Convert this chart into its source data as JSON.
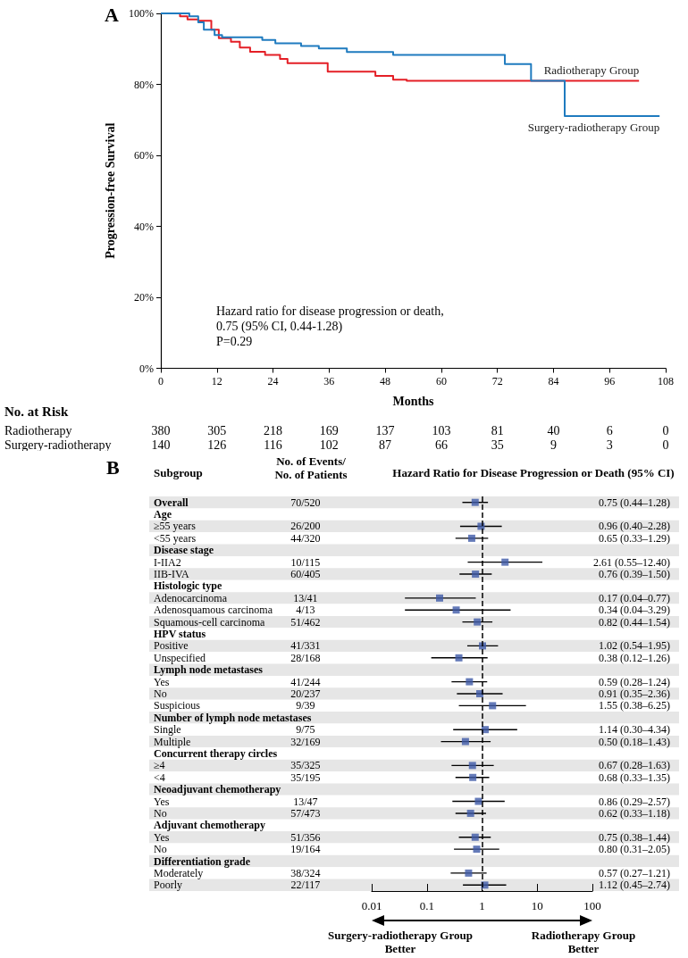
{
  "chart_data": [
    {
      "type": "step",
      "title": "A",
      "xlabel": "Months",
      "ylabel": "Progression-free Survival",
      "xlim": [
        0,
        108
      ],
      "xticks": [
        0,
        12,
        24,
        36,
        48,
        60,
        72,
        84,
        96,
        108
      ],
      "ylim": [
        0,
        100
      ],
      "yticks": [
        {
          "value": 0,
          "label": "0%"
        },
        {
          "value": 20,
          "label": "20%"
        },
        {
          "value": 40,
          "label": "40%"
        },
        {
          "value": 60,
          "label": "60%"
        },
        {
          "value": 80,
          "label": "80%"
        },
        {
          "value": 100,
          "label": "100%"
        }
      ],
      "series": [
        {
          "name": "Radiotherapy Group",
          "color": "#e41f26",
          "x": [
            0,
            4.1,
            5.7,
            8.0,
            10.8,
            12.4,
            15.0,
            16.9,
            19.1,
            22.3,
            25.5,
            27.1,
            35.7,
            45.9,
            49.7,
            52.6,
            102.3
          ],
          "values": [
            100,
            99.2,
            98.3,
            97.9,
            95.4,
            93.0,
            92.0,
            90.4,
            89.2,
            88.3,
            87.2,
            86.0,
            83.6,
            82.4,
            81.3,
            81.0,
            81.0
          ]
        },
        {
          "name": "Surgery-radiotherapy Group",
          "color": "#1f7bbf",
          "x": [
            0,
            6.1,
            8.0,
            9.2,
            11.5,
            13.1,
            21.7,
            24.5,
            30.0,
            33.8,
            39.8,
            49.7,
            73.6,
            79.2,
            86.4,
            106.7
          ],
          "values": [
            100,
            99.2,
            97.5,
            95.4,
            93.9,
            93.3,
            92.5,
            91.6,
            90.8,
            90.1,
            89.1,
            88.3,
            85.7,
            81.0,
            71.1,
            71.1
          ]
        }
      ],
      "annotations": [
        "Hazard ratio for disease progression or death,\n0.75 (95% CI, 0.44-1.28)\nP=0.29",
        "No. at Risk",
        "Radiotherapy",
        "380",
        "305",
        "218",
        "169",
        "137",
        "103",
        "81",
        "40",
        "6",
        "0",
        "Surgery-radiotherapy",
        "140",
        "126",
        "116",
        "102",
        "87",
        "66",
        "35",
        "9",
        "3",
        "0"
      ]
    },
    {
      "type": "scatter",
      "orientation": "horizontal",
      "title": "B",
      "subtitle": "Hazard Ratio for Disease Progression or Death (95% CI)",
      "ylabel": "Subgroup",
      "log": "x",
      "xlim": [
        0.01,
        100
      ],
      "xticks": [
        0.01,
        0.1,
        1,
        10,
        100
      ],
      "marker": "square",
      "color": "#3f5aa8",
      "categories": [
        "Overall",
        "Age",
        "≥55 years",
        "<55 years",
        "Disease stage",
        "I-IIA2",
        "IIB-IVA",
        "Histologic type",
        "Adenocarcinoma",
        "Adenosquamous carcinoma",
        "Squamous-cell carcinoma",
        "HPV status",
        "Positive",
        "Unspecified",
        "Lymph node metastases",
        "Yes",
        "No",
        "Suspicious",
        "Number of lymph node metastases",
        "Single",
        "Multiple",
        "Concurrent therapy circles",
        "≥4",
        "<4",
        "Neoadjuvant chemotherapy",
        "Yes",
        "No",
        "Adjuvant chemotherapy",
        "Yes",
        "No",
        "Differentiation grade",
        "Moderately",
        "Poorly"
      ],
      "values": [
        0.75,
        null,
        0.96,
        0.65,
        null,
        2.61,
        0.76,
        null,
        0.17,
        0.34,
        0.82,
        null,
        1.02,
        0.38,
        null,
        0.59,
        0.91,
        1.55,
        null,
        1.14,
        0.5,
        null,
        0.67,
        0.68,
        null,
        0.86,
        0.62,
        null,
        0.75,
        0.8,
        null,
        0.57,
        1.12
      ],
      "errors": [
        [
          0.44,
          1.28
        ],
        null,
        [
          0.4,
          2.28
        ],
        [
          0.33,
          1.29
        ],
        null,
        [
          0.55,
          12.4
        ],
        [
          0.39,
          1.5
        ],
        null,
        [
          0.04,
          0.77
        ],
        [
          0.04,
          3.29
        ],
        [
          0.44,
          1.54
        ],
        null,
        [
          0.54,
          1.95
        ],
        [
          0.12,
          1.26
        ],
        null,
        [
          0.28,
          1.24
        ],
        [
          0.35,
          2.36
        ],
        [
          0.38,
          6.25
        ],
        null,
        [
          0.3,
          4.34
        ],
        [
          0.18,
          1.43
        ],
        null,
        [
          0.28,
          1.63
        ],
        [
          0.33,
          1.35
        ],
        null,
        [
          0.29,
          2.57
        ],
        [
          0.33,
          1.18
        ],
        null,
        [
          0.38,
          1.44
        ],
        [
          0.31,
          2.05
        ],
        null,
        [
          0.27,
          1.21
        ],
        [
          0.45,
          2.74
        ]
      ],
      "value_labels": [
        "0.75 (0.44–1.28)",
        null,
        "0.96 (0.40–2.28)",
        "0.65 (0.33–1.29)",
        null,
        "2.61 (0.55–12.40)",
        "0.76 (0.39–1.50)",
        null,
        "0.17 (0.04–0.77)",
        "0.34 (0.04–3.29)",
        "0.82 (0.44–1.54)",
        null,
        "1.02 (0.54–1.95)",
        "0.38 (0.12–1.26)",
        null,
        "0.59 (0.28–1.24)",
        "0.91 (0.35–2.36)",
        "1.55 (0.38–6.25)",
        null,
        "1.14 (0.30–4.34)",
        "0.50 (0.18–1.43)",
        null,
        "0.67 (0.28–1.63)",
        "0.68 (0.33–1.35)",
        null,
        "0.86 (0.29–2.57)",
        "0.62 (0.33–1.18)",
        null,
        "0.75 (0.38–1.44)",
        "0.80 (0.31–2.05)",
        null,
        "0.57 (0.27–1.21)",
        "1.12 (0.45–2.74)"
      ],
      "ref_lines": [
        {
          "axis": "x",
          "value": 1,
          "line_style": "dashed"
        }
      ],
      "annotations": [
        "No. of Events/\nNo. of Patients",
        "70/520",
        "26/200",
        "44/320",
        "10/115",
        "60/405",
        "13/41",
        "4/13",
        "51/462",
        "41/331",
        "28/168",
        "41/244",
        "20/237",
        "9/39",
        "9/75",
        "32/169",
        "35/325",
        "35/195",
        "13/47",
        "57/473",
        "51/356",
        "19/164",
        "38/324",
        "22/117",
        "Surgery-radiotherapy Group\nBetter",
        "Radiotherapy Group\nBetter"
      ]
    }
  ]
}
